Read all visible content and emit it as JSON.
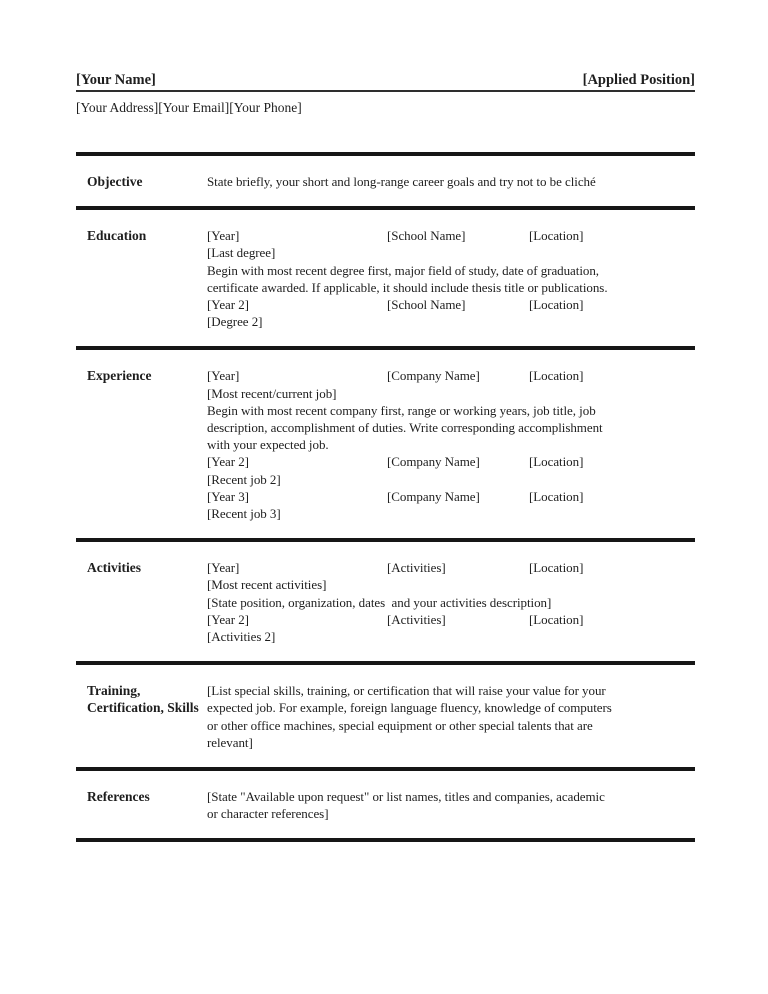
{
  "page": {
    "background_color": "#ffffff",
    "text_color": "#1e1e1e",
    "rule_color": "#161616"
  },
  "header": {
    "name": "[Your Name]",
    "applied_position": "[Applied Position]",
    "contact": "[Your Address][Your Email][Your Phone]"
  },
  "sections": {
    "objective": {
      "label": "Objective",
      "rows": [
        {
          "text": "State briefly, your short and long-range career goals and try not to be cliché"
        }
      ]
    },
    "education": {
      "label": "Education",
      "rows": [
        {
          "c1": "[Year]",
          "c2": "[School Name]",
          "c3": "[Location]"
        },
        {
          "text": "[Last degree]"
        },
        {
          "text": "Begin with most recent degree first, major field of study, date of graduation,"
        },
        {
          "text": "certificate awarded. If applicable, it should include thesis title or publications."
        },
        {
          "c1": "[Year 2]",
          "c2": "[School Name]",
          "c3": "[Location]"
        },
        {
          "text": "[Degree 2]"
        }
      ]
    },
    "experience": {
      "label": "Experience",
      "rows": [
        {
          "c1": "[Year]",
          "c2": "[Company Name]",
          "c3": "[Location]"
        },
        {
          "text": "[Most recent/current job]"
        },
        {
          "text": "Begin with most recent company first, range or working years, job title, job"
        },
        {
          "text": "description, accomplishment of duties. Write corresponding accomplishment"
        },
        {
          "text": "with your expected job."
        },
        {
          "c1": "[Year 2]",
          "c2": "[Company Name]",
          "c3": "[Location]"
        },
        {
          "text": "[Recent job 2]"
        },
        {
          "c1": "[Year 3]",
          "c2": "[Company Name]",
          "c3": "[Location]"
        },
        {
          "text": "[Recent job 3]"
        }
      ]
    },
    "activities": {
      "label": "Activities",
      "rows": [
        {
          "c1": "[Year]",
          "c2": "[Activities]",
          "c3": "[Location]"
        },
        {
          "text": "[Most recent activities]"
        },
        {
          "text": "[State position, organization, dates  and your activities description]"
        },
        {
          "c1": "[Year 2]",
          "c2": "[Activities]",
          "c3": "[Location]"
        },
        {
          "text": "[Activities 2]"
        }
      ]
    },
    "training": {
      "label": "Training, Certification, Skills",
      "rows": [
        {
          "text": "[List special skills, training, or certification that will raise your value for your"
        },
        {
          "text": "expected job. For example, foreign language fluency, knowledge of computers"
        },
        {
          "text": "or other office machines, special equipment or other special talents that are"
        },
        {
          "text": "relevant]"
        }
      ]
    },
    "references": {
      "label": "References",
      "rows": [
        {
          "text": "[State \"Available upon request\" or list names, titles and companies, academic"
        },
        {
          "text": "or character references]"
        }
      ]
    }
  }
}
